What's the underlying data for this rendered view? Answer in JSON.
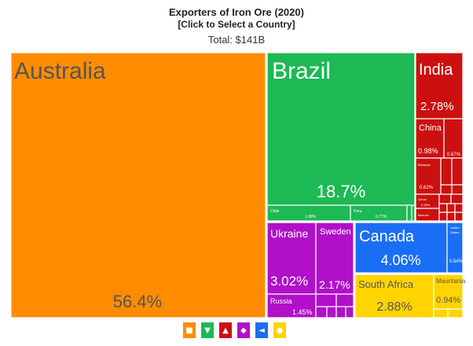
{
  "header": {
    "title": "Exporters of Iron Ore (2020)",
    "subtitle": "[Click to Select a Country]",
    "total": "Total: $141B"
  },
  "colors": {
    "oceania": "#ff8c00",
    "south_america": "#1db954",
    "asia": "#cc1010",
    "europe": "#b010c8",
    "north_america": "#1a6ef5",
    "africa": "#ffd400"
  },
  "chart_data": {
    "type": "treemap",
    "title": "Exporters of Iron Ore (2020)",
    "total": "$141B",
    "tiles": [
      {
        "name": "Australia",
        "share": 56.4,
        "share_label": "56.4%",
        "region": "oceania"
      },
      {
        "name": "Brazil",
        "share": 18.7,
        "share_label": "18.7%",
        "region": "south_america"
      },
      {
        "name": "Chile",
        "share": 1.08,
        "share_label": "1.08%",
        "region": "south_america"
      },
      {
        "name": "Peru",
        "share": 0.77,
        "share_label": "0.77%",
        "region": "south_america"
      },
      {
        "name": "India",
        "share": 2.78,
        "share_label": "2.78%",
        "region": "asia"
      },
      {
        "name": "China",
        "share": 0.98,
        "share_label": "0.98%",
        "region": "asia"
      },
      {
        "name": "",
        "share": 0.67,
        "share_label": "0.67%",
        "region": "asia"
      },
      {
        "name": "Malaysia",
        "share": 0.62,
        "share_label": "0.62%",
        "region": "asia"
      },
      {
        "name": "Oman",
        "share": 0.35,
        "share_label": "0.35%",
        "region": "asia"
      },
      {
        "name": "Bahrain",
        "share": null,
        "share_label": "",
        "region": "asia"
      },
      {
        "name": "Ukraine",
        "share": 3.02,
        "share_label": "3.02%",
        "region": "europe"
      },
      {
        "name": "Sweden",
        "share": 2.17,
        "share_label": "2.17%",
        "region": "europe"
      },
      {
        "name": "Russia",
        "share": 1.45,
        "share_label": "1.45%",
        "region": "europe"
      },
      {
        "name": "Canada",
        "share": 4.06,
        "share_label": "4.06%",
        "region": "north_america"
      },
      {
        "name": "United States",
        "share": 0.64,
        "share_label": "0.64%",
        "region": "north_america"
      },
      {
        "name": "South Africa",
        "share": 2.88,
        "share_label": "2.88%",
        "region": "africa"
      },
      {
        "name": "Mauritania",
        "share": 0.94,
        "share_label": "0.94%",
        "region": "africa"
      }
    ]
  },
  "legend": [
    {
      "region": "oceania",
      "icon": "australia-icon",
      "color": "#ff8c00"
    },
    {
      "region": "south_america",
      "icon": "south-america-icon",
      "color": "#1db954"
    },
    {
      "region": "asia",
      "icon": "asia-icon",
      "color": "#cc1010"
    },
    {
      "region": "europe",
      "icon": "europe-icon",
      "color": "#b010c8"
    },
    {
      "region": "north_america",
      "icon": "north-america-icon",
      "color": "#1a6ef5"
    },
    {
      "region": "africa",
      "icon": "africa-icon",
      "color": "#ffd400"
    }
  ]
}
